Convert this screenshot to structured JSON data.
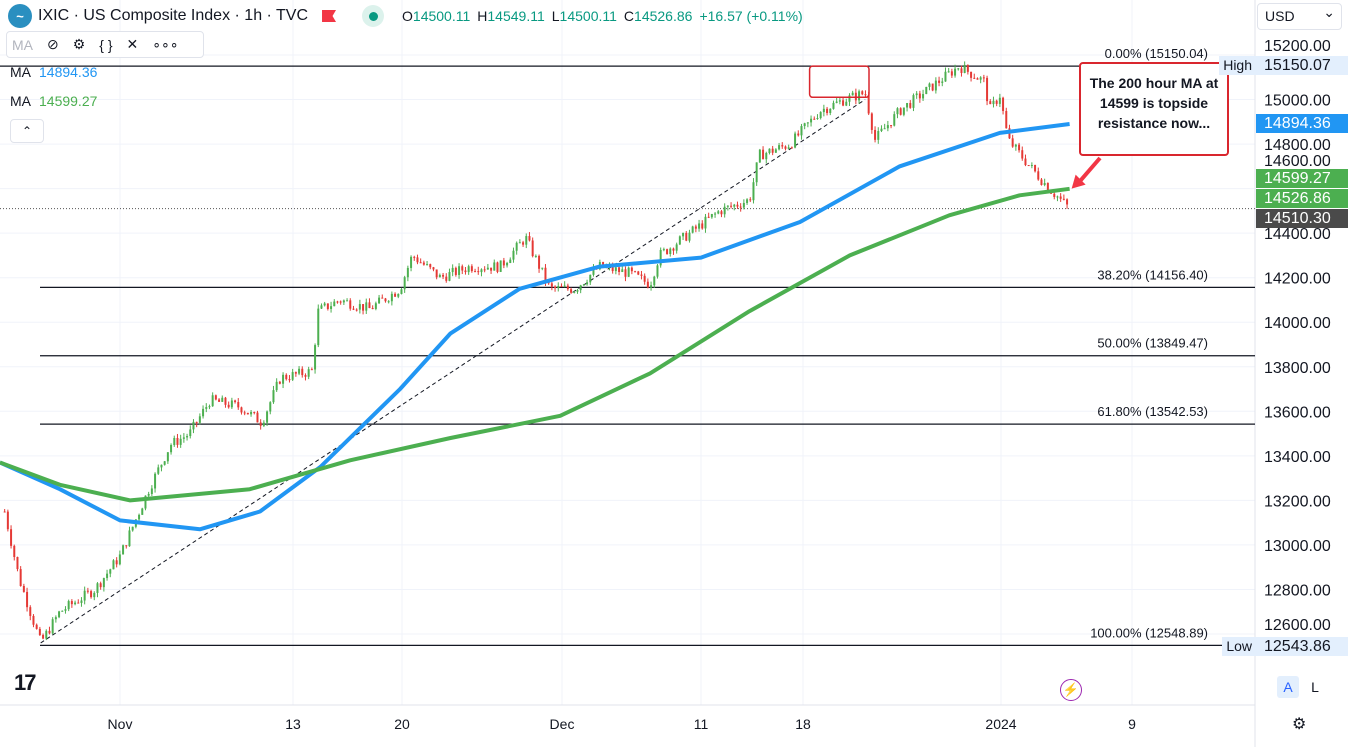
{
  "header": {
    "symbol": "IXIC · US Composite Index · 1h · TVC",
    "open_label": "O",
    "open": "14500.11",
    "high_label": "H",
    "high": "14549.11",
    "low_label": "L",
    "low": "14500.11",
    "close_label": "C",
    "close": "14526.86",
    "change": "+16.57 (+0.11%)",
    "logo_icon": "tradingview-symbol-logo",
    "flag_icon": "flag-icon",
    "status_icon": "market-open-dot"
  },
  "toolbar": {
    "ma_label": "MA",
    "icons": [
      "eye-off-icon",
      "gear-icon",
      "braces-icon",
      "close-icon",
      "more-icon"
    ]
  },
  "legend": [
    {
      "label": "MA",
      "value": "14894.36",
      "color": "#2196f3"
    },
    {
      "label": "MA",
      "value": "14599.27",
      "color": "#4caf50"
    }
  ],
  "currency": "USD",
  "price_axis": {
    "ticks": [
      "15200.00",
      "15000.00",
      "14800.00",
      "14600.00",
      "14400.00",
      "14200.00",
      "14000.00",
      "13800.00",
      "13600.00",
      "13400.00",
      "13200.00",
      "13000.00",
      "12800.00",
      "12600.00"
    ],
    "tags": [
      {
        "value": "15150.07",
        "label": "High",
        "color": "#e3effd",
        "text": "#131722"
      },
      {
        "value": "14894.36",
        "color": "#2196f3"
      },
      {
        "value": "14599.27",
        "color": "#4caf50"
      },
      {
        "value": "14526.86",
        "color": "#4caf50"
      },
      {
        "value": "14510.30",
        "color": "#4a4a4a"
      },
      {
        "value": "12543.86",
        "label": "Low",
        "color": "#e3effd",
        "text": "#131722"
      }
    ]
  },
  "time_axis": {
    "ticks": [
      {
        "label": "Nov",
        "date": "2023-11-01"
      },
      {
        "label": "13",
        "date": "2023-11-13"
      },
      {
        "label": "20",
        "date": "2023-11-20"
      },
      {
        "label": "Dec",
        "date": "2023-12-01"
      },
      {
        "label": "11",
        "date": "2023-12-11"
      },
      {
        "label": "18",
        "date": "2023-12-18"
      },
      {
        "label": "2024",
        "date": "2024-01-02"
      },
      {
        "label": "9",
        "date": "2024-01-09"
      }
    ]
  },
  "fib": [
    {
      "label": "0.00% (15150.04)",
      "price": 15150.04
    },
    {
      "label": "38.20% (14156.40)",
      "price": 14156.4
    },
    {
      "label": "50.00% (13849.47)",
      "price": 13849.47
    },
    {
      "label": "61.80% (13542.53)",
      "price": 13542.53
    },
    {
      "label": "100.00% (12548.89)",
      "price": 12548.89
    }
  ],
  "annotation": "The 200 hour MA at 14599 is topside resistance now...",
  "buttons": {
    "auto": "A",
    "log": "L"
  },
  "colors": {
    "up": "#4caf50",
    "down": "#e53935",
    "ma100": "#2196f3",
    "ma200": "#4caf50",
    "annotation": "#d9262e"
  },
  "chart_data": {
    "type": "candlestick",
    "price_range": [
      12400,
      15300
    ],
    "close_path": [
      [
        "2023-10-24",
        13150
      ],
      [
        "2023-10-25",
        12850
      ],
      [
        "2023-10-26T12:00",
        12560
      ],
      [
        "2023-10-27T20:00",
        12700
      ],
      [
        "2023-10-30T06:00",
        12800
      ],
      [
        "2023-11-01",
        12950
      ],
      [
        "2023-11-02",
        13100
      ],
      [
        "2023-11-03",
        13250
      ],
      [
        "2023-11-04T12:00",
        13450
      ],
      [
        "2023-11-05T20:00",
        13500
      ],
      [
        "2023-11-07T06:00",
        13650
      ],
      [
        "2023-11-09T08:00",
        13620
      ],
      [
        "2023-11-10T20:00",
        13550
      ],
      [
        "2023-11-12T03:00",
        13750
      ],
      [
        "2023-11-14T05:00",
        13780
      ],
      [
        "2023-11-14T15:00",
        14050
      ],
      [
        "2023-11-16",
        14100
      ],
      [
        "2023-11-17T22:00",
        14060
      ],
      [
        "2023-11-19T21:00",
        14150
      ],
      [
        "2023-11-20T17:00",
        14300
      ],
      [
        "2023-11-22T15:00",
        14200
      ],
      [
        "2023-11-24T17:00",
        14250
      ],
      [
        "2023-11-26T18:00",
        14250
      ],
      [
        "2023-11-28T12:00",
        14380
      ],
      [
        "2023-11-30T04:00",
        14150
      ],
      [
        "2023-12-01T22:00",
        14150
      ],
      [
        "2023-12-03T17:00",
        14250
      ],
      [
        "2023-12-05T21:00",
        14220
      ],
      [
        "2023-12-07T08:00",
        14170
      ],
      [
        "2023-12-08",
        14300
      ],
      [
        "2023-12-10T05:00",
        14400
      ],
      [
        "2023-12-12T07:00",
        14500
      ],
      [
        "2023-12-14T08:00",
        14550
      ],
      [
        "2023-12-15",
        14750
      ],
      [
        "2023-12-17T03:00",
        14800
      ],
      [
        "2023-12-19T07:00",
        14950
      ],
      [
        "2023-12-21T04:00",
        15000
      ],
      [
        "2023-12-22T17:00",
        15030
      ],
      [
        "2023-12-23T11:00",
        14820
      ],
      [
        "2023-12-25T08:00",
        14950
      ],
      [
        "2023-12-27T14:00",
        15050
      ],
      [
        "2023-12-29T20:00",
        15150
      ],
      [
        "2023-12-31T18:00",
        15080
      ],
      [
        "2024-01-01T03:00",
        14950
      ],
      [
        "2024-01-01T22:00",
        15020
      ],
      [
        "2024-01-02T09:00",
        14820
      ],
      [
        "2024-01-03T13:00",
        14700
      ],
      [
        "2024-01-04T14:00",
        14600
      ],
      [
        "2024-01-05T16:00",
        14510
      ]
    ],
    "ma100": [
      [
        "2023-10-23T16:00",
        13370
      ],
      [
        "2023-10-27T20:00",
        13250
      ],
      [
        "2023-11-01",
        13110
      ],
      [
        "2023-11-06T13:00",
        13070
      ],
      [
        "2023-11-10T17:00",
        13150
      ],
      [
        "2023-11-14T18:00",
        13350
      ],
      [
        "2023-11-19T21:00",
        13700
      ],
      [
        "2023-11-23T08:00",
        13950
      ],
      [
        "2023-11-28T02:00",
        14150
      ],
      [
        "2023-12-03T17:00",
        14250
      ],
      [
        "2023-12-11",
        14290
      ],
      [
        "2023-12-17T19:00",
        14450
      ],
      [
        "2023-12-25T08:00",
        14700
      ],
      [
        "2024-01-01T22:00",
        14850
      ],
      [
        "2024-01-05T16:00",
        14890
      ]
    ],
    "ma200": [
      [
        "2023-10-23T16:00",
        13370
      ],
      [
        "2023-10-27T20:00",
        13270
      ],
      [
        "2023-11-01T17:00",
        13200
      ],
      [
        "2023-11-10",
        13250
      ],
      [
        "2023-11-16T16:00",
        13380
      ],
      [
        "2023-11-23T08:00",
        13480
      ],
      [
        "2023-11-30T21:00",
        13580
      ],
      [
        "2023-12-07T08:00",
        13770
      ],
      [
        "2023-12-14T08:00",
        14050
      ],
      [
        "2023-12-21T13:00",
        14300
      ],
      [
        "2023-12-29T02:00",
        14480
      ],
      [
        "2024-01-03",
        14570
      ],
      [
        "2024-01-05T16:00",
        14599
      ]
    ],
    "trendline": [
      [
        "2023-10-26T12:00",
        12560
      ],
      [
        "2023-12-22T17:00",
        15000
      ]
    ],
    "highlight_box": [
      [
        "2023-12-18T12:00",
        15150
      ],
      [
        "2023-12-23",
        15010
      ]
    ],
    "arrow": [
      [
        "2024-01-05T22:00",
        14720
      ],
      [
        "2024-01-05T16:00",
        14600
      ]
    ]
  }
}
